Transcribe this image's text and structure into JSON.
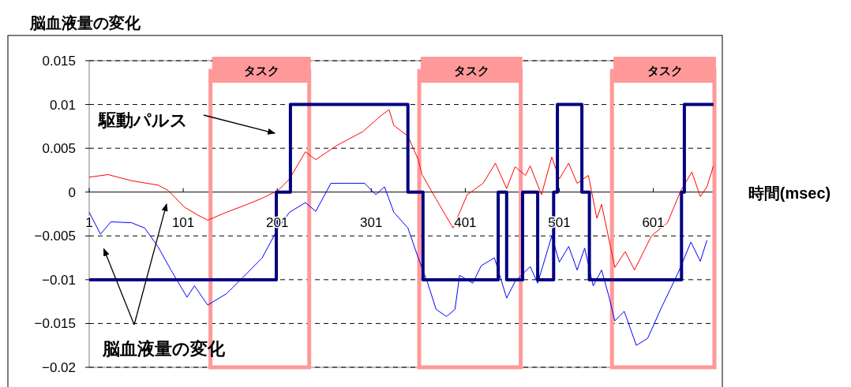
{
  "chart_data": {
    "type": "line",
    "title": "脳血液量の変化",
    "xlabel": "時間(msec)",
    "xlim": [
      1,
      666
    ],
    "xticks": [
      1,
      101,
      201,
      301,
      401,
      501,
      601
    ],
    "ylim": [
      -0.02,
      0.015
    ],
    "yticks": [
      -0.02,
      -0.015,
      -0.01,
      -0.005,
      0,
      0.005,
      0.01,
      0.015
    ],
    "grid": "y",
    "bands": [
      {
        "axis": "x",
        "from": 130,
        "to": 235,
        "label": "タスク",
        "color": "#ff9999"
      },
      {
        "axis": "x",
        "from": 352,
        "to": 460,
        "label": "タスク",
        "color": "#ff9999"
      },
      {
        "axis": "x",
        "from": 557,
        "to": 666,
        "label": "タスク",
        "color": "#ff9999"
      }
    ],
    "annotations": [
      "駆動パルス",
      "脳血液量の変化"
    ],
    "series": [
      {
        "color": "#ff0000",
        "x": [
          1,
          21,
          46,
          74,
          85,
          102,
          116,
          127,
          147,
          169,
          185,
          202,
          214,
          231,
          242,
          264,
          292,
          311,
          320,
          325,
          340,
          351,
          355,
          370,
          388,
          403,
          420,
          433,
          445,
          454,
          465,
          470,
          482,
          493,
          501,
          511,
          520,
          532,
          541,
          546,
          560,
          571,
          581,
          599,
          616,
          630,
          642,
          651,
          658,
          665
        ],
        "values": [
          0.0017,
          0.002,
          0.0013,
          0.0008,
          0.0002,
          -0.0017,
          -0.0026,
          -0.0032,
          -0.0023,
          -0.0014,
          -0.0007,
          0.0002,
          0.0015,
          0.0046,
          0.0037,
          0.0053,
          0.0069,
          0.0087,
          0.0094,
          0.0076,
          0.0064,
          0.0037,
          0.002,
          -0.0008,
          -0.0041,
          -0.0003,
          0.001,
          0.0033,
          0.0004,
          0.0029,
          0.0019,
          0.003,
          -0.0003,
          0.004,
          0.0015,
          0.0033,
          0.001,
          0.0019,
          -0.003,
          -0.0014,
          -0.0086,
          -0.0068,
          -0.0089,
          -0.005,
          -0.0035,
          0.0001,
          0.0023,
          -0.0005,
          0.0006,
          0.003
        ]
      },
      {
        "color": "#0000ff",
        "x": [
          1,
          13,
          24,
          46,
          60,
          74,
          88,
          105,
          113,
          127,
          147,
          164,
          185,
          202,
          214,
          231,
          242,
          258,
          275,
          294,
          306,
          315,
          325,
          340,
          351,
          361,
          370,
          381,
          390,
          395,
          409,
          418,
          432,
          445,
          454,
          470,
          478,
          493,
          501,
          511,
          520,
          528,
          537,
          546,
          554,
          560,
          570,
          583,
          595,
          610,
          627,
          641,
          651,
          658
        ],
        "values": [
          -0.0023,
          -0.0048,
          -0.0034,
          -0.0035,
          -0.0041,
          -0.0062,
          -0.0089,
          -0.012,
          -0.0107,
          -0.0129,
          -0.0116,
          -0.0098,
          -0.0075,
          -0.0041,
          -0.0023,
          -0.0012,
          -0.0022,
          0.001,
          0.001,
          0.001,
          -0.0003,
          0.0006,
          -0.0023,
          -0.0041,
          -0.0075,
          -0.0104,
          -0.0134,
          -0.0142,
          -0.0134,
          -0.0095,
          -0.0104,
          -0.0084,
          -0.0075,
          -0.0121,
          -0.0102,
          -0.0085,
          -0.0104,
          -0.005,
          -0.008,
          -0.0062,
          -0.0089,
          -0.0064,
          -0.0107,
          -0.0089,
          -0.012,
          -0.0147,
          -0.0136,
          -0.0175,
          -0.0167,
          -0.0131,
          -0.0093,
          -0.0057,
          -0.0079,
          -0.0055
        ]
      },
      {
        "color": "#000080",
        "x": [
          1,
          200,
          200,
          215,
          215,
          340,
          340,
          356,
          356,
          436,
          436,
          445,
          445,
          462,
          462,
          478,
          478,
          495,
          495,
          499,
          499,
          525,
          525,
          533,
          533,
          631,
          631,
          634,
          634,
          665
        ],
        "values": [
          -0.01,
          -0.01,
          0,
          0,
          0.01,
          0.01,
          0,
          0,
          -0.01,
          -0.01,
          0,
          0,
          -0.01,
          -0.01,
          0,
          0,
          -0.01,
          -0.01,
          0,
          0,
          0.01,
          0.01,
          0,
          0,
          -0.01,
          -0.01,
          0,
          0,
          0.01,
          0.01
        ]
      }
    ]
  }
}
